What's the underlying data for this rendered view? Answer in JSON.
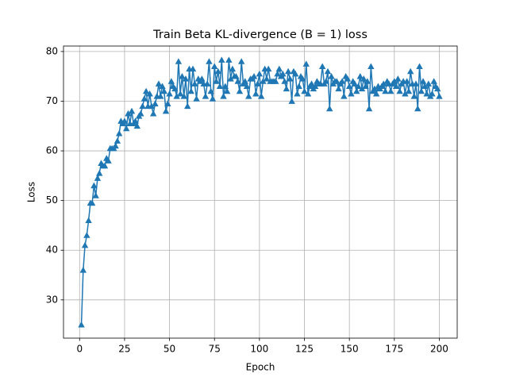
{
  "chart_data": {
    "type": "line",
    "title": "Train Beta KL-divergence (B = 1) loss",
    "xlabel": "Epoch",
    "ylabel": "Loss",
    "color": "#1f77b4",
    "marker": "triangle",
    "grid": true,
    "xlim": [
      -8.95,
      209.95
    ],
    "ylim": [
      22.3,
      81.1
    ],
    "xticks": [
      0,
      25,
      50,
      75,
      100,
      125,
      150,
      175,
      200
    ],
    "yticks": [
      30,
      40,
      50,
      60,
      70,
      80
    ],
    "x": [
      1,
      2,
      3,
      4,
      5,
      6,
      7,
      8,
      9,
      10,
      11,
      12,
      13,
      14,
      15,
      16,
      17,
      18,
      19,
      20,
      21,
      22,
      23,
      24,
      25,
      26,
      27,
      28,
      29,
      30,
      31,
      32,
      33,
      34,
      35,
      36,
      37,
      38,
      39,
      40,
      41,
      42,
      43,
      44,
      45,
      46,
      47,
      48,
      49,
      50,
      51,
      52,
      53,
      54,
      55,
      56,
      57,
      58,
      59,
      60,
      61,
      62,
      63,
      64,
      65,
      66,
      67,
      68,
      69,
      70,
      71,
      72,
      73,
      74,
      75,
      76,
      77,
      78,
      79,
      80,
      81,
      82,
      83,
      84,
      85,
      86,
      87,
      88,
      89,
      90,
      91,
      92,
      93,
      94,
      95,
      96,
      97,
      98,
      99,
      100,
      101,
      102,
      103,
      104,
      105,
      106,
      107,
      108,
      109,
      110,
      111,
      112,
      113,
      114,
      115,
      116,
      117,
      118,
      119,
      120,
      121,
      122,
      123,
      124,
      125,
      126,
      127,
      128,
      129,
      130,
      131,
      132,
      133,
      134,
      135,
      136,
      137,
      138,
      139,
      140,
      141,
      142,
      143,
      144,
      145,
      146,
      147,
      148,
      149,
      150,
      151,
      152,
      153,
      154,
      155,
      156,
      157,
      158,
      159,
      160,
      161,
      162,
      163,
      164,
      165,
      166,
      167,
      168,
      169,
      170,
      171,
      172,
      173,
      174,
      175,
      176,
      177,
      178,
      179,
      180,
      181,
      182,
      183,
      184,
      185,
      186,
      187,
      188,
      189,
      190,
      191,
      192,
      193,
      194,
      195,
      196,
      197,
      198,
      199,
      200
    ],
    "values": [
      25,
      36,
      41,
      43,
      46,
      49.5,
      49.5,
      53,
      51,
      54.5,
      55.5,
      57.5,
      57,
      57,
      58.5,
      58,
      60.5,
      60.5,
      60.5,
      61,
      62,
      63.5,
      66,
      65.5,
      66,
      64.5,
      67.5,
      65.5,
      68,
      65.5,
      66,
      65,
      67,
      67.5,
      69,
      70.5,
      72,
      69,
      71.5,
      69,
      67.5,
      69.5,
      71,
      73.5,
      71,
      73,
      72,
      68,
      69.5,
      71.5,
      74,
      73,
      72.5,
      71,
      78,
      71.5,
      75,
      71,
      74.5,
      69,
      76.5,
      72,
      76.5,
      73.5,
      70.5,
      74.5,
      74,
      74.5,
      73.5,
      71,
      73.5,
      78,
      72,
      70.5,
      77,
      74,
      76,
      73,
      78.3,
      71,
      73,
      72,
      78.3,
      74.5,
      76.5,
      75,
      75,
      74,
      72,
      78,
      73.5,
      74,
      73,
      71,
      74.5,
      74.5,
      75,
      71.5,
      73.5,
      75.5,
      71,
      74,
      76.5,
      74.5,
      76.5,
      74,
      74,
      74,
      74,
      75.5,
      76.5,
      75,
      75.5,
      74,
      72.5,
      76,
      74.5,
      70,
      76,
      75.5,
      71.5,
      73,
      75,
      74.5,
      72,
      77.5,
      71.5,
      73,
      73.5,
      72.5,
      73,
      74,
      73.5,
      73.5,
      77,
      73.5,
      74,
      76,
      68.5,
      75,
      73.5,
      74,
      74,
      72.5,
      73.5,
      74,
      71,
      75,
      74.5,
      73,
      71.5,
      74,
      73.5,
      72,
      73,
      75,
      72.5,
      74.5,
      73,
      74,
      68.5,
      77,
      72,
      72.5,
      71.5,
      73,
      72.5,
      73,
      73.5,
      72,
      74,
      73.5,
      72,
      73.5,
      74,
      73,
      74.5,
      72,
      73.5,
      74,
      71.5,
      74,
      72,
      76,
      73.5,
      71,
      73.5,
      68.5,
      77,
      72,
      74,
      73,
      71.5,
      73.5,
      71,
      71.5,
      74,
      73,
      72.5,
      71
    ]
  }
}
